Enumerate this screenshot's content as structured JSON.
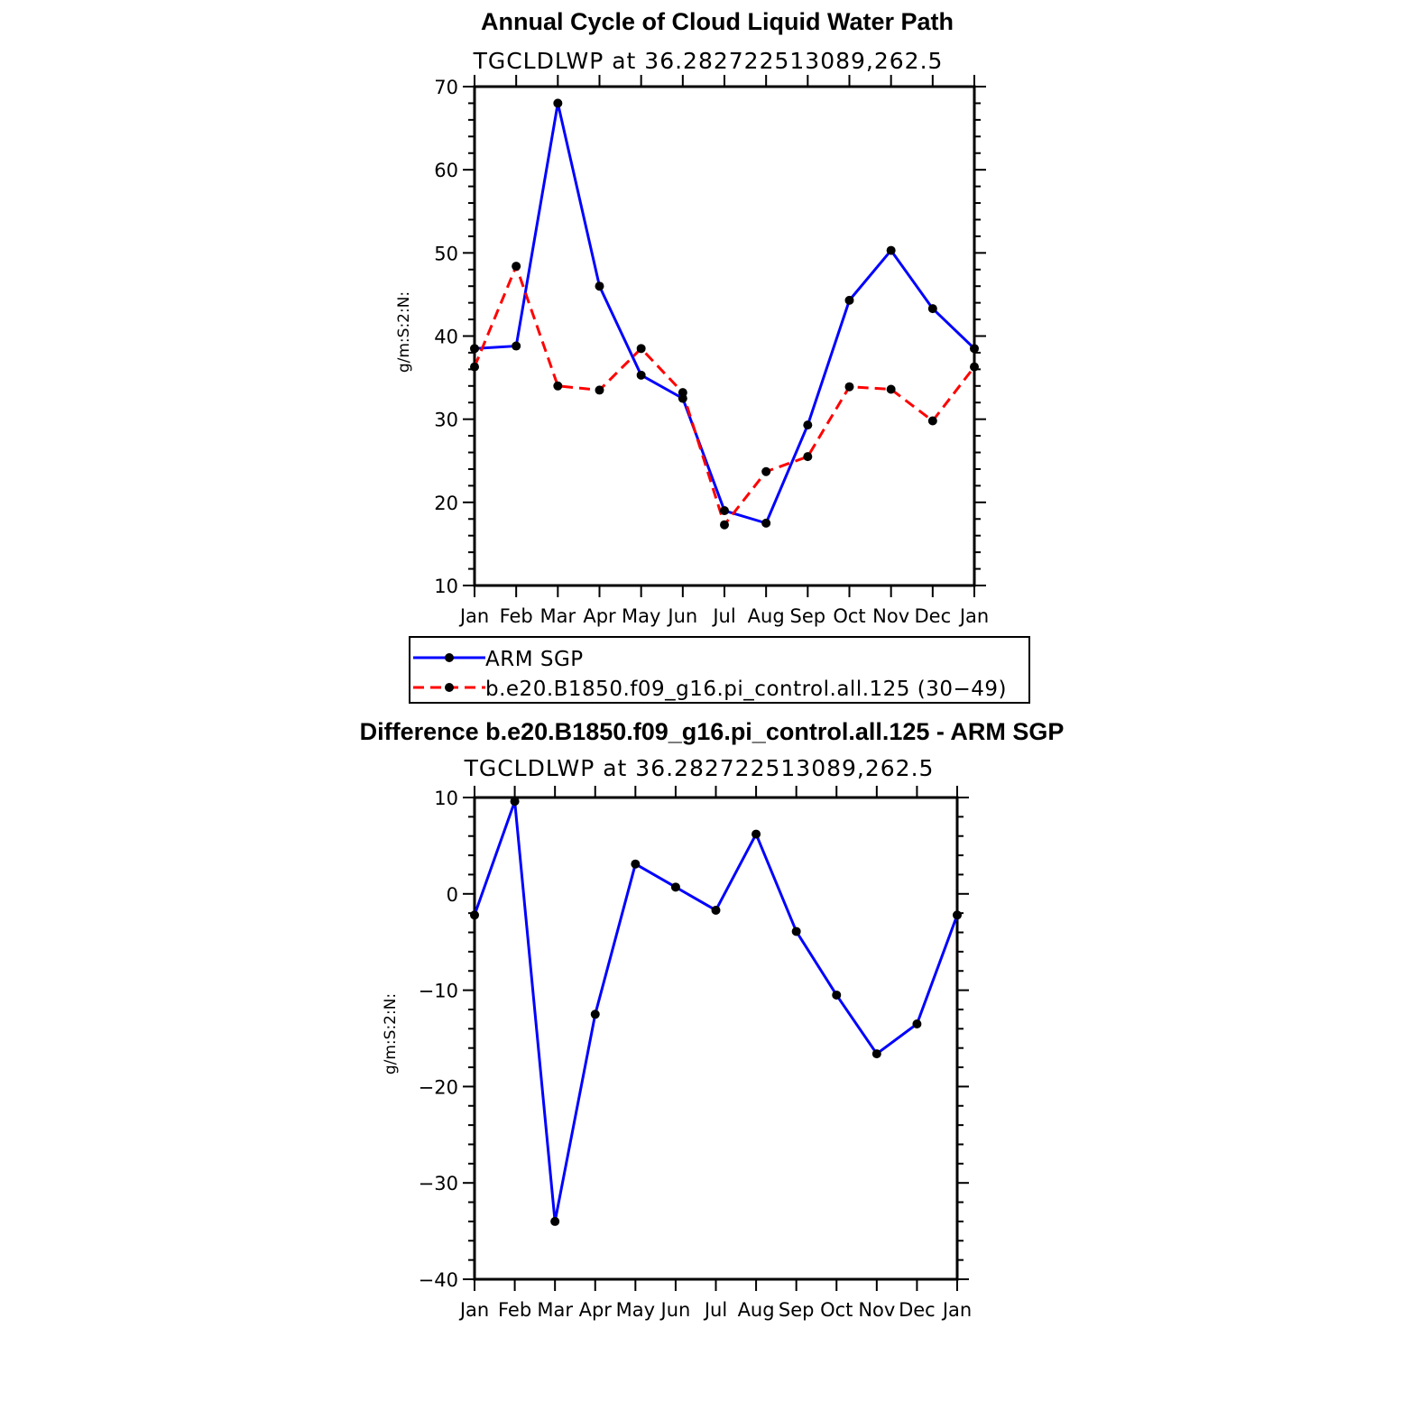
{
  "chart_data": [
    {
      "type": "line",
      "title": "Annual Cycle of Cloud Liquid Water Path",
      "subtitle": "TGCLDLWP  at  36.282722513089,262.5",
      "ylabel": "g/m:S:2:N:",
      "xlabel": "",
      "ylim": [
        10,
        70
      ],
      "yticks": [
        "10",
        "20",
        "30",
        "40",
        "50",
        "60",
        "70"
      ],
      "categories": [
        "Jan",
        "Feb",
        "Mar",
        "Apr",
        "May",
        "Jun",
        "Jul",
        "Aug",
        "Sep",
        "Oct",
        "Nov",
        "Dec",
        "Jan"
      ],
      "series": [
        {
          "name": "ARM SGP",
          "color": "#0000ff",
          "dash": "solid",
          "values": [
            38.5,
            38.8,
            68.0,
            46.0,
            35.3,
            32.5,
            19.0,
            17.5,
            29.3,
            44.3,
            50.3,
            43.3,
            38.5
          ]
        },
        {
          "name": "b.e20.B1850.f09_g16.pi_control.all.125 (30−49)",
          "color": "#ff0000",
          "dash": "dashed",
          "values": [
            36.3,
            48.4,
            34.0,
            33.5,
            38.5,
            33.2,
            17.3,
            23.7,
            25.5,
            33.9,
            33.6,
            29.8,
            36.3
          ]
        }
      ],
      "legend": "bottom"
    },
    {
      "type": "line",
      "title": "Difference b.e20.B1850.f09_g16.pi_control.all.125 - ARM SGP",
      "subtitle": "TGCLDLWP  at  36.282722513089,262.5",
      "ylabel": "g/m:S:2:N:",
      "xlabel": "",
      "ylim": [
        -40,
        10
      ],
      "yticks": [
        "−40",
        "−30",
        "−20",
        "−10",
        "0",
        "10"
      ],
      "categories": [
        "Jan",
        "Feb",
        "Mar",
        "Apr",
        "May",
        "Jun",
        "Jul",
        "Aug",
        "Sep",
        "Oct",
        "Nov",
        "Dec",
        "Jan"
      ],
      "series": [
        {
          "name": "Difference",
          "color": "#0000ff",
          "dash": "solid",
          "values": [
            -2.2,
            9.6,
            -34.0,
            -12.5,
            3.1,
            0.7,
            -1.7,
            6.2,
            -3.9,
            -10.5,
            -16.6,
            -13.5,
            -2.2
          ]
        }
      ]
    }
  ]
}
